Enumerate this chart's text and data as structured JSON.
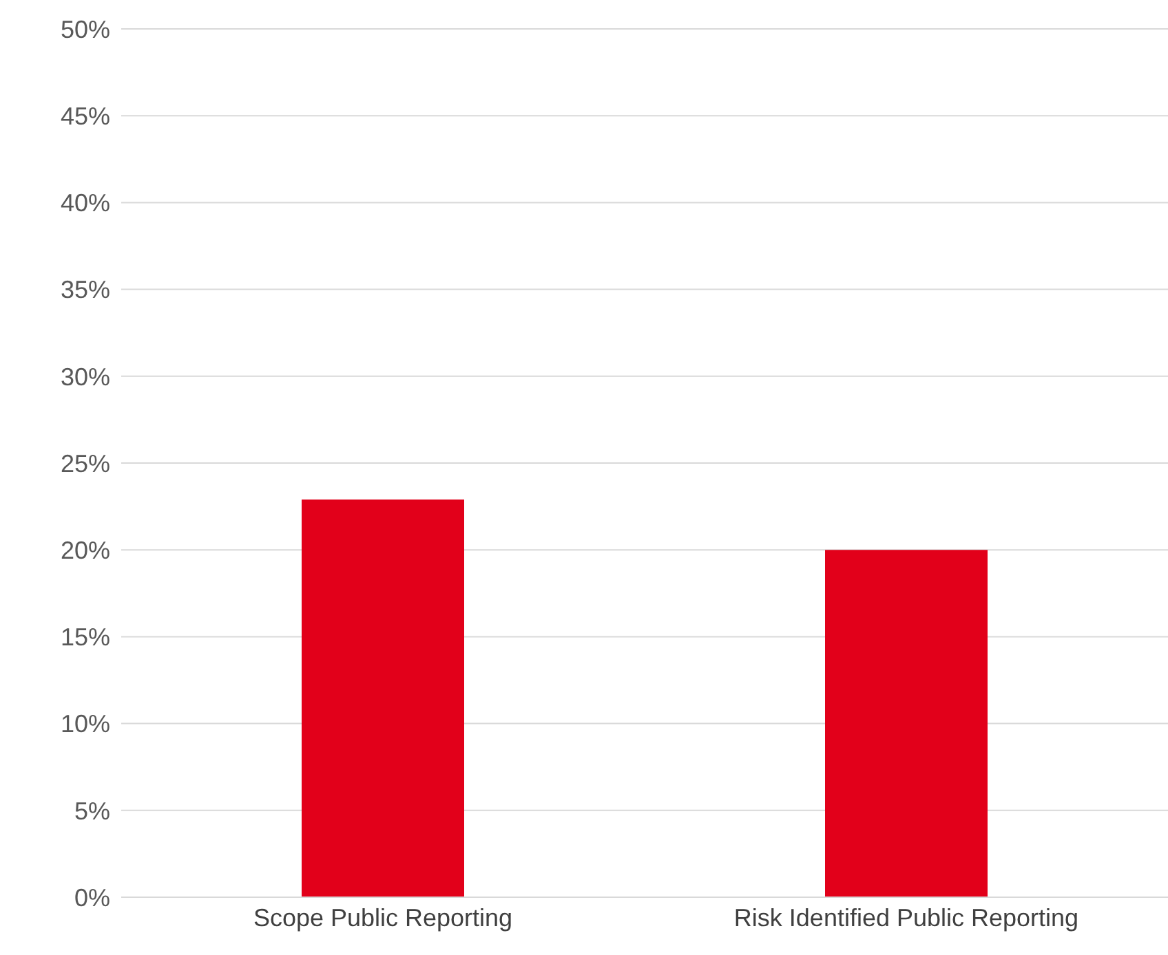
{
  "chart_data": {
    "type": "bar",
    "categories": [
      "Scope Public Reporting",
      "Risk Identified Public Reporting"
    ],
    "values": [
      22.9,
      20
    ],
    "color": "#e2001a",
    "ylim": [
      0,
      50
    ],
    "yticks": [
      {
        "value": 0,
        "label": "0%"
      },
      {
        "value": 5,
        "label": "5%"
      },
      {
        "value": 10,
        "label": "10%"
      },
      {
        "value": 15,
        "label": "15%"
      },
      {
        "value": 20,
        "label": "20%"
      },
      {
        "value": 25,
        "label": "25%"
      },
      {
        "value": 30,
        "label": "30%"
      },
      {
        "value": 35,
        "label": "35%"
      },
      {
        "value": 40,
        "label": "40%"
      },
      {
        "value": 45,
        "label": "45%"
      },
      {
        "value": 50,
        "label": "50%"
      }
    ],
    "grid": "y"
  }
}
